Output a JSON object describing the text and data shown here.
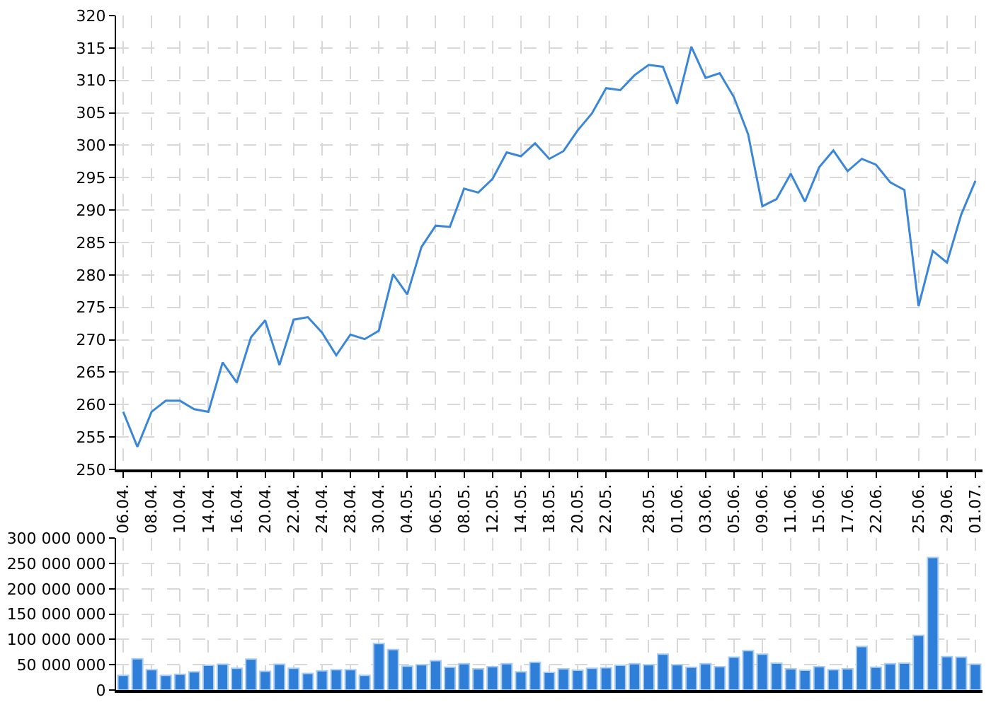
{
  "chart_data": [
    {
      "type": "line",
      "categories": [
        "06.04.",
        null,
        "08.04.",
        null,
        "10.04.",
        null,
        "14.04.",
        null,
        "16.04.",
        null,
        "20.04.",
        null,
        "22.04.",
        null,
        "24.04.",
        null,
        "28.04.",
        null,
        "30.04.",
        null,
        "04.05.",
        null,
        "06.05.",
        null,
        "08.05.",
        null,
        "12.05.",
        null,
        "14.05.",
        null,
        "18.05.",
        null,
        "20.05.",
        null,
        "22.05.",
        null,
        null,
        "28.05.",
        null,
        "01.06.",
        null,
        "03.06.",
        null,
        "05.06.",
        null,
        "09.06.",
        null,
        "11.06.",
        null,
        "15.06.",
        null,
        "17.06.",
        null,
        "22.06.",
        null,
        null,
        "25.06.",
        null,
        "29.06.",
        null,
        "01.07."
      ],
      "series": [
        {
          "color": "#3a86d8",
          "values": [
            258.9,
            253.5,
            258.9,
            260.6,
            260.6,
            259.3,
            258.9,
            266.5,
            263.4,
            270.4,
            273.0,
            266.1,
            273.1,
            273.5,
            271.1,
            267.6,
            270.8,
            270.1,
            271.4,
            280.1,
            277.0,
            284.3,
            287.6,
            287.4,
            293.3,
            292.7,
            294.8,
            298.9,
            298.3,
            300.3,
            297.9,
            299.1,
            302.3,
            304.9,
            308.8,
            308.5,
            310.8,
            312.4,
            312.1,
            306.4,
            315.2,
            310.4,
            311.1,
            307.4,
            301.7,
            290.6,
            291.7,
            295.6,
            291.3,
            296.6,
            299.2,
            296.0,
            297.9,
            297.0,
            294.3,
            293.1,
            275.2,
            283.7,
            281.9,
            289.3,
            294.5
          ]
        }
      ],
      "ylim": [
        250,
        320
      ],
      "yticks": [
        250,
        255,
        260,
        265,
        270,
        275,
        280,
        285,
        290,
        295,
        300,
        305,
        310,
        315,
        320
      ],
      "grid": true
    },
    {
      "type": "bar",
      "categories": [
        "06.04.",
        null,
        "08.04.",
        null,
        "10.04.",
        null,
        "14.04.",
        null,
        "16.04.",
        null,
        "20.04.",
        null,
        "22.04.",
        null,
        "24.04.",
        null,
        "28.04.",
        null,
        "30.04.",
        null,
        "04.05.",
        null,
        "06.05.",
        null,
        "08.05.",
        null,
        "12.05.",
        null,
        "14.05.",
        null,
        "18.05.",
        null,
        "20.05.",
        null,
        "22.05.",
        null,
        null,
        "28.05.",
        null,
        "01.06.",
        null,
        "03.06.",
        null,
        "05.06.",
        null,
        "09.06.",
        null,
        "11.06.",
        null,
        "15.06.",
        null,
        "17.06.",
        null,
        "22.06.",
        null,
        null,
        "25.06.",
        null,
        "29.06.",
        null,
        "01.07."
      ],
      "series": [
        {
          "color": "#2f7ed8",
          "values": [
            29000000,
            62000000,
            40000000,
            29000000,
            31000000,
            36000000,
            49000000,
            51000000,
            43000000,
            61000000,
            37000000,
            51000000,
            43000000,
            33000000,
            38000000,
            40000000,
            40000000,
            29000000,
            92000000,
            80000000,
            47000000,
            50000000,
            58000000,
            45000000,
            52000000,
            42000000,
            46000000,
            52000000,
            36000000,
            55000000,
            35000000,
            42000000,
            39000000,
            43000000,
            44000000,
            49000000,
            52000000,
            50000000,
            71000000,
            50000000,
            45000000,
            52000000,
            46000000,
            65000000,
            78000000,
            71000000,
            53000000,
            42000000,
            39000000,
            46000000,
            40000000,
            42000000,
            86000000,
            45000000,
            52000000,
            53000000,
            108000000,
            262000000,
            66000000,
            65000000,
            51000000
          ]
        }
      ],
      "ylim": [
        0,
        300000000
      ],
      "yticks": [
        {
          "value": 0,
          "label": "0"
        },
        {
          "value": 50000000,
          "label": "50 000 000"
        },
        {
          "value": 100000000,
          "label": "100 000 000"
        },
        {
          "value": 150000000,
          "label": "150 000 000"
        },
        {
          "value": 200000000,
          "label": "200 000 000"
        },
        {
          "value": 250000000,
          "label": "250 000 000"
        },
        {
          "value": 300000000,
          "label": "300 000 000"
        }
      ],
      "grid": true,
      "tick_labels": "y"
    }
  ]
}
